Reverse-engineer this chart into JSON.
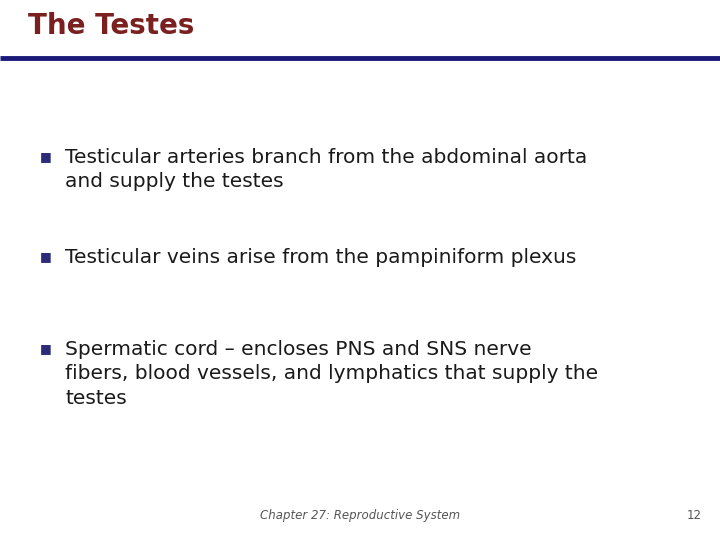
{
  "title": "The Testes",
  "title_color": "#7B2020",
  "title_fontsize": 20,
  "line_color": "#1A1A7A",
  "background_color": "#FFFFFF",
  "bullet_color": "#2B2B7A",
  "text_color": "#1A1A1A",
  "bullet_char": "■",
  "bullets": [
    "Testicular arteries branch from the abdominal aorta\nand supply the testes",
    "Testicular veins arise from the pampiniform plexus",
    "Spermatic cord – encloses PNS and SNS nerve\nfibers, blood vessels, and lymphatics that supply the\ntestes"
  ],
  "bullet_fontsize": 14.5,
  "footer_text": "Chapter 27: Reproductive System",
  "footer_page": "12",
  "footer_fontsize": 8.5
}
